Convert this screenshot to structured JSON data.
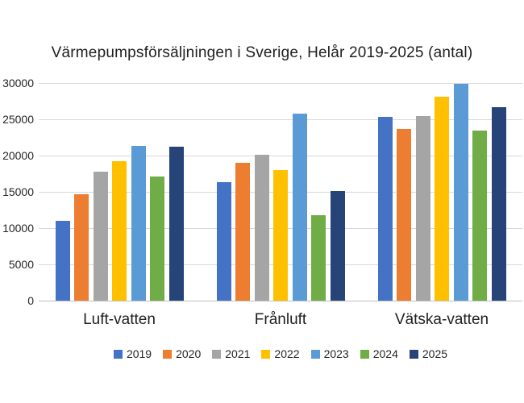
{
  "chart_data": {
    "type": "bar",
    "title": "Värmepumpsförsäljningen i Sverige, Helår 2019-2025 (antal)",
    "categories": [
      "Luft-vatten",
      "Frånluft",
      "Vätska-vatten"
    ],
    "series": [
      {
        "name": "2019",
        "color": "#4472C4",
        "values": [
          11000,
          16300,
          25300
        ]
      },
      {
        "name": "2020",
        "color": "#ED7D31",
        "values": [
          14700,
          19000,
          23700
        ]
      },
      {
        "name": "2021",
        "color": "#A5A5A5",
        "values": [
          17800,
          20100,
          25500
        ]
      },
      {
        "name": "2022",
        "color": "#FFC000",
        "values": [
          19200,
          18000,
          28100
        ]
      },
      {
        "name": "2023",
        "color": "#5B9BD5",
        "values": [
          21300,
          25800,
          29900
        ]
      },
      {
        "name": "2024",
        "color": "#70AD47",
        "values": [
          17100,
          11800,
          23500
        ]
      },
      {
        "name": "2025",
        "color": "#264478",
        "values": [
          21200,
          15100,
          26700
        ]
      }
    ],
    "ylim": [
      0,
      30000
    ],
    "yticks": [
      0,
      5000,
      10000,
      15000,
      20000,
      25000,
      30000
    ],
    "grid": true,
    "legend_position": "bottom"
  },
  "colors": {
    "background": "#FFFFFF",
    "gridline": "#D9D9D9",
    "axis_line": "#BFBFBF",
    "text": "#1F1F1F"
  }
}
